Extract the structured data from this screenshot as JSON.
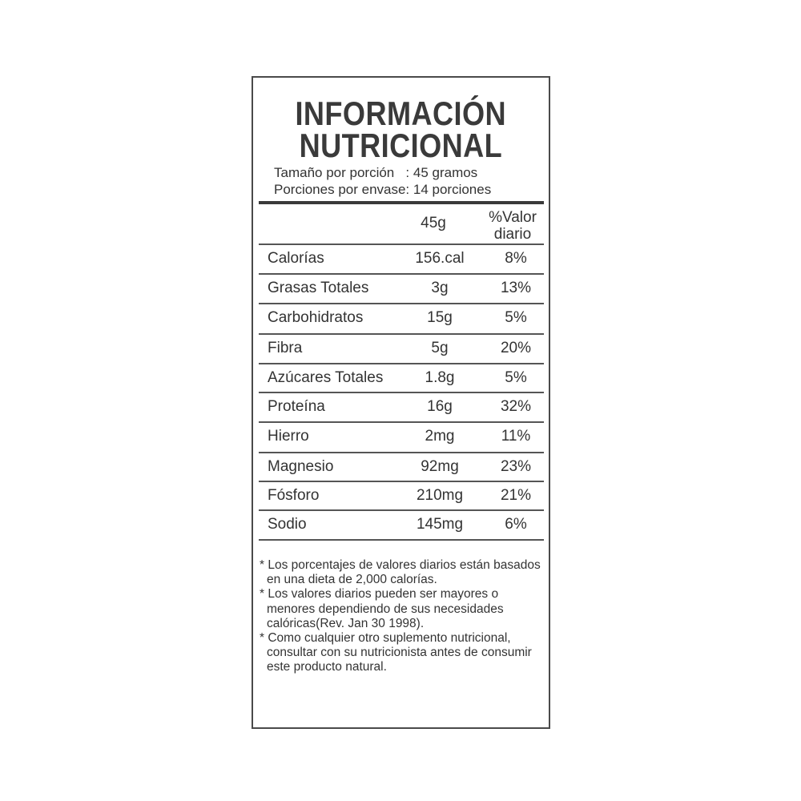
{
  "title": [
    "INFORMACIÓN",
    "NUTRICIONAL"
  ],
  "serving": {
    "size_line": "Tamaño por porción   : 45 gramos",
    "servings_line": "Porciones por envase: 14 porciones"
  },
  "header": {
    "amount": "45g",
    "dv_line1": "%Valor",
    "dv_line2": "diario"
  },
  "rows": [
    {
      "name": "Calorías",
      "value": "156.cal",
      "pct": "8%"
    },
    {
      "name": "Grasas Totales",
      "value": "3g",
      "pct": "13%"
    },
    {
      "name": "Carbohidratos",
      "value": "15g",
      "pct": "5%"
    },
    {
      "name": "Fibra",
      "value": "5g",
      "pct": "20%"
    },
    {
      "name": "Azúcares Totales",
      "value": "1.8g",
      "pct": "5%"
    },
    {
      "name": "Proteína",
      "value": "16g",
      "pct": "32%"
    },
    {
      "name": "Hierro",
      "value": "2mg",
      "pct": "11%"
    },
    {
      "name": "Magnesio",
      "value": "92mg",
      "pct": "23%"
    },
    {
      "name": "Fósforo",
      "value": "210mg",
      "pct": "21%"
    },
    {
      "name": "Sodio",
      "value": "145mg",
      "pct": "6%"
    }
  ],
  "notes": [
    "* Los porcentajes de valores diarios están basados en una dieta de 2,000 calorías.",
    "* Los valores diarios pueden ser mayores o menores dependiendo de sus necesidades calóricas(Rev. Jan 30 1998).",
    "* Como cualquier otro suplemento nutricional, consultar con su nutricionista antes de consumir este producto natural."
  ]
}
